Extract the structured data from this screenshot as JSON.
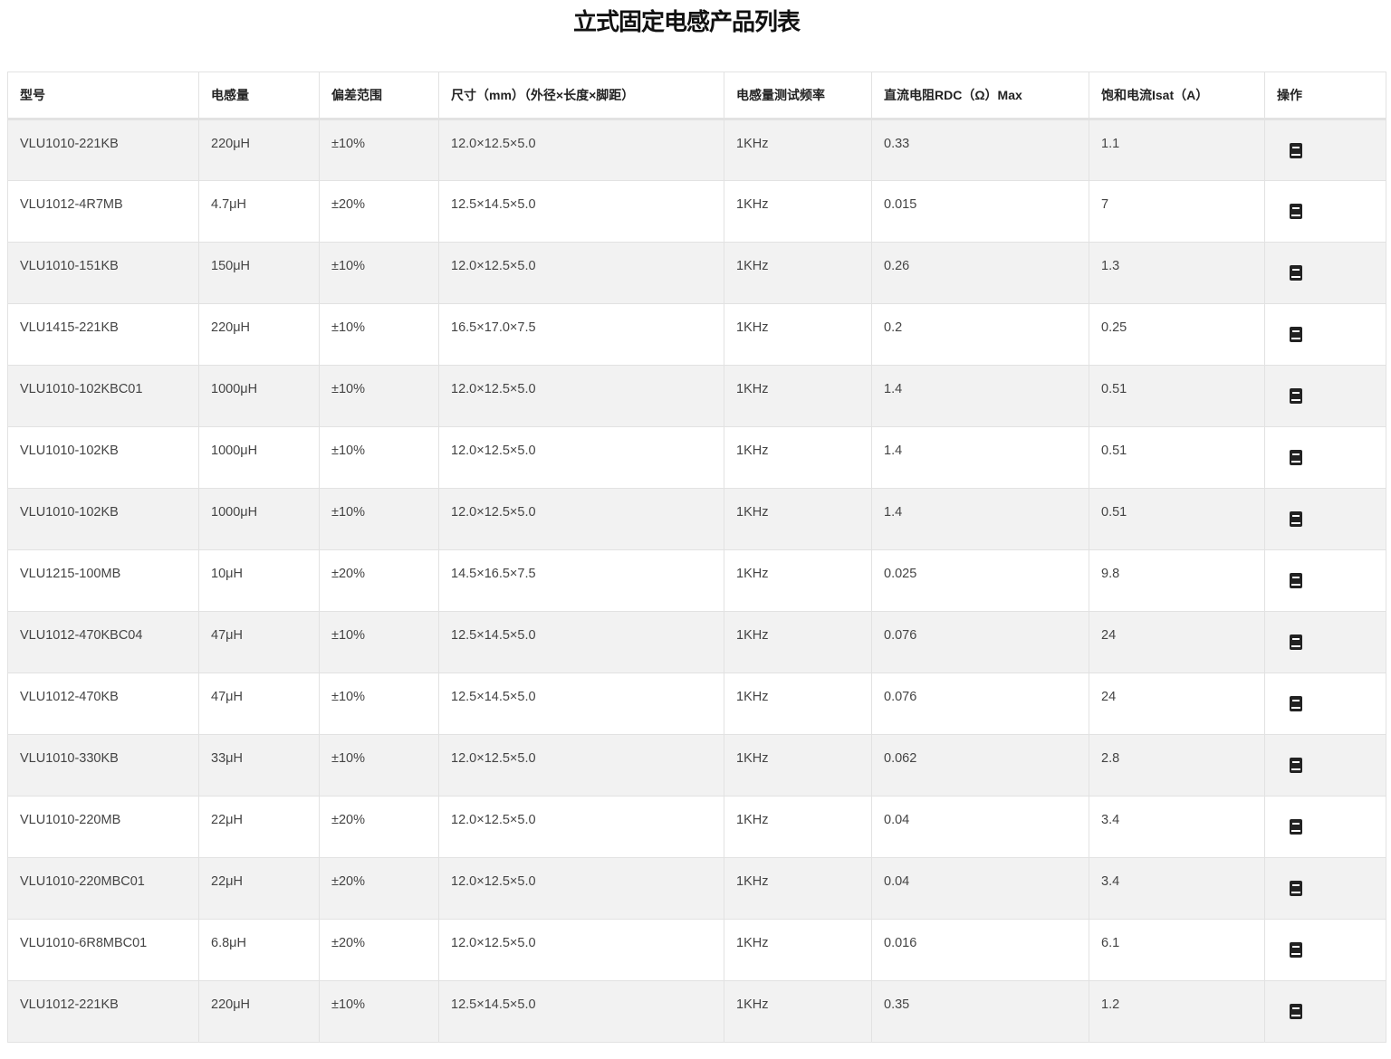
{
  "title": "立式固定电感产品列表",
  "headers": [
    "型号",
    "电感量",
    "偏差范围",
    "尺寸（mm）（外径×长度×脚距）",
    "电感量测试频率",
    "直流电阻RDC（Ω）Max",
    "饱和电流Isat（A）",
    "操作"
  ],
  "action_icon": "document-icon",
  "rows": [
    [
      "VLU1010-221KB",
      "220μH",
      "±10%",
      "12.0×12.5×5.0",
      "1KHz",
      "0.33",
      "1.1"
    ],
    [
      "VLU1012-4R7MB",
      "4.7μH",
      "±20%",
      "12.5×14.5×5.0",
      "1KHz",
      "0.015",
      "7"
    ],
    [
      "VLU1010-151KB",
      "150μH",
      "±10%",
      "12.0×12.5×5.0",
      "1KHz",
      "0.26",
      "1.3"
    ],
    [
      "VLU1415-221KB",
      "220μH",
      "±10%",
      "16.5×17.0×7.5",
      "1KHz",
      "0.2",
      "0.25"
    ],
    [
      "VLU1010-102KBC01",
      "1000μH",
      "±10%",
      "12.0×12.5×5.0",
      "1KHz",
      "1.4",
      "0.51"
    ],
    [
      "VLU1010-102KB",
      "1000μH",
      "±10%",
      "12.0×12.5×5.0",
      "1KHz",
      "1.4",
      "0.51"
    ],
    [
      "VLU1010-102KB",
      "1000μH",
      "±10%",
      "12.0×12.5×5.0",
      "1KHz",
      "1.4",
      "0.51"
    ],
    [
      "VLU1215-100MB",
      "10μH",
      "±20%",
      "14.5×16.5×7.5",
      "1KHz",
      "0.025",
      "9.8"
    ],
    [
      "VLU1012-470KBC04",
      "47μH",
      "±10%",
      "12.5×14.5×5.0",
      "1KHz",
      "0.076",
      "24"
    ],
    [
      "VLU1012-470KB",
      "47μH",
      "±10%",
      "12.5×14.5×5.0",
      "1KHz",
      "0.076",
      "24"
    ],
    [
      "VLU1010-330KB",
      "33μH",
      "±10%",
      "12.0×12.5×5.0",
      "1KHz",
      "0.062",
      "2.8"
    ],
    [
      "VLU1010-220MB",
      "22μH",
      "±20%",
      "12.0×12.5×5.0",
      "1KHz",
      "0.04",
      "3.4"
    ],
    [
      "VLU1010-220MBC01",
      "22μH",
      "±20%",
      "12.0×12.5×5.0",
      "1KHz",
      "0.04",
      "3.4"
    ],
    [
      "VLU1010-6R8MBC01",
      "6.8μH",
      "±20%",
      "12.0×12.5×5.0",
      "1KHz",
      "0.016",
      "6.1"
    ],
    [
      "VLU1012-221KB",
      "220μH",
      "±10%",
      "12.5×14.5×5.0",
      "1KHz",
      "0.35",
      "1.2"
    ]
  ]
}
